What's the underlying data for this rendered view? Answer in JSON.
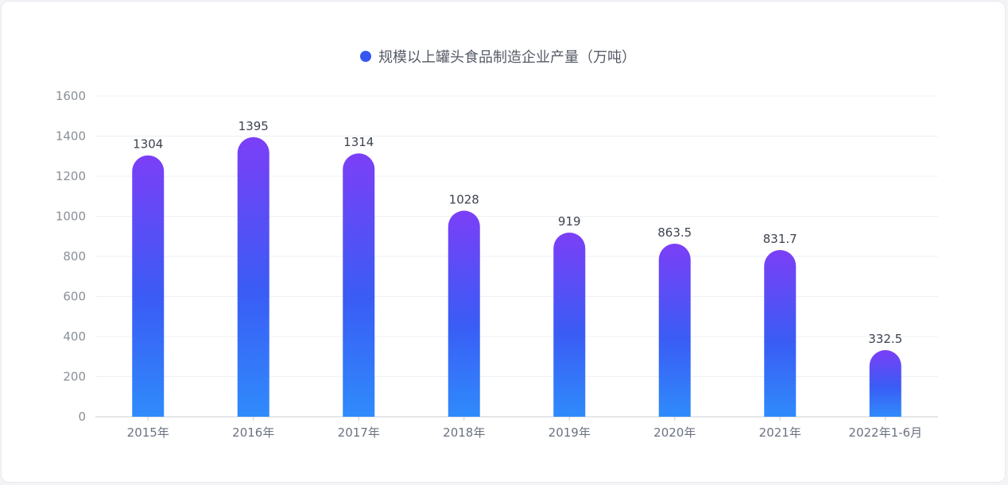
{
  "chart_data": {
    "type": "bar",
    "categories": [
      "2015年",
      "2016年",
      "2017年",
      "2018年",
      "2019年",
      "2020年",
      "2021年",
      "2022年1-6月"
    ],
    "series": [
      {
        "name": "规模以上罐头食品制造企业产量（万吨）",
        "values": [
          1304,
          1395,
          1314,
          1028,
          919,
          863.5,
          831.7,
          332.5
        ]
      }
    ],
    "value_labels": [
      "1304",
      "1395",
      "1314",
      "1028",
      "919",
      "863.5",
      "831.7",
      "332.5"
    ],
    "ylim": [
      0,
      1600
    ],
    "yticks": [
      0,
      200,
      400,
      600,
      800,
      1000,
      1200,
      1400,
      1600
    ],
    "grid": true,
    "legend_position": "top-center",
    "colors": {
      "bar_top": "#7b3ff7",
      "bar_mid": "#3a5cf5",
      "bar_bottom": "#2f8bfb",
      "legend_dot": "#3557f0",
      "grid": "#eef0f4",
      "axis": "#c9ccd3"
    }
  }
}
